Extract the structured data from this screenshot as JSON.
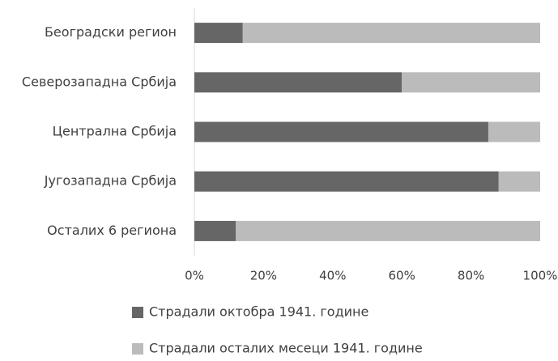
{
  "chart_data": {
    "type": "stacked-barh",
    "categories": [
      "Београдски регион",
      "Северозападна Србија",
      "Централна Србија",
      "Југозападна Србија",
      "Осталих 6 региона"
    ],
    "series": [
      {
        "name": "Страдали октобра 1941. године",
        "color": "#666666",
        "values": [
          14,
          60,
          85,
          88,
          12
        ]
      },
      {
        "name": "Страдали осталих месеци 1941. године",
        "color": "#bbbbbb",
        "values": [
          86,
          40,
          15,
          12,
          88
        ]
      }
    ],
    "xlim": [
      0,
      100
    ],
    "xticks": [
      {
        "value": 0,
        "label": "0%"
      },
      {
        "value": 20,
        "label": "20%"
      },
      {
        "value": 40,
        "label": "40%"
      },
      {
        "value": 60,
        "label": "60%"
      },
      {
        "value": 80,
        "label": "80%"
      },
      {
        "value": 100,
        "label": "100%"
      }
    ]
  }
}
